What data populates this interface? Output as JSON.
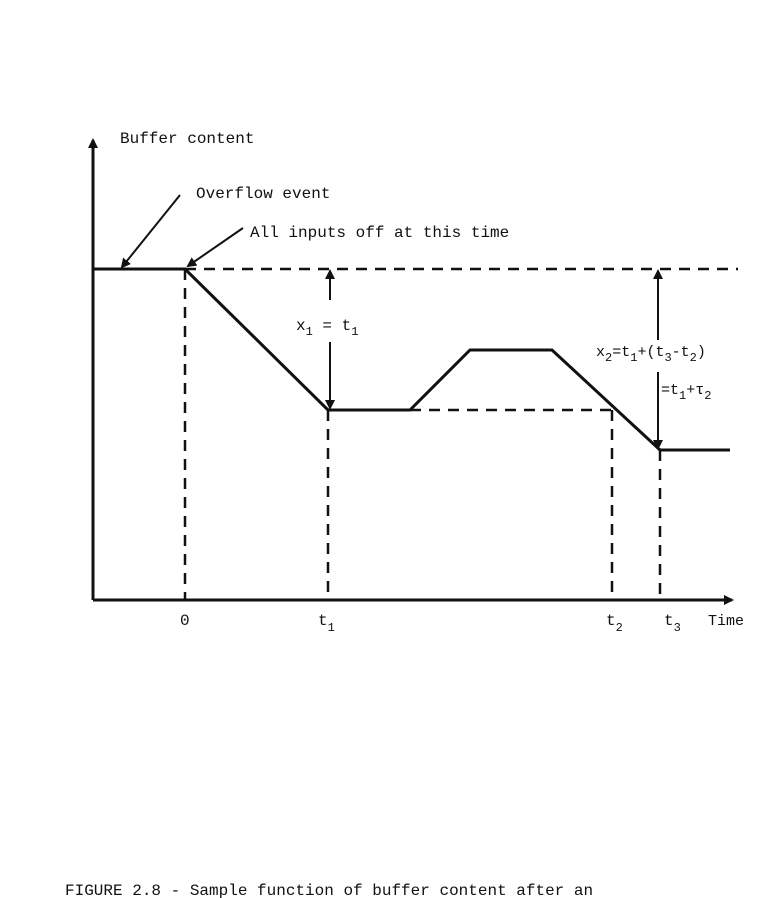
{
  "diagram": {
    "y_axis_label": "Buffer content",
    "x_axis_label": "Time",
    "annotations": {
      "overflow": "Overflow event",
      "inputs_off": "All inputs off at this time"
    },
    "x1_label": [
      "x",
      "1",
      " = t",
      "1"
    ],
    "x2_label": [
      "x",
      "2",
      "=t",
      "1",
      "+(t",
      "3",
      "-t",
      "2",
      ")"
    ],
    "x2_label_line2": [
      "=t",
      "1",
      "+τ",
      "2"
    ],
    "ticks": {
      "zero": "0",
      "t1": [
        "t",
        "1"
      ],
      "t2": [
        "t",
        "2"
      ],
      "t3": [
        "t",
        "3"
      ]
    },
    "caption": "FIGURE 2.8 - Sample function of buffer content after an"
  }
}
